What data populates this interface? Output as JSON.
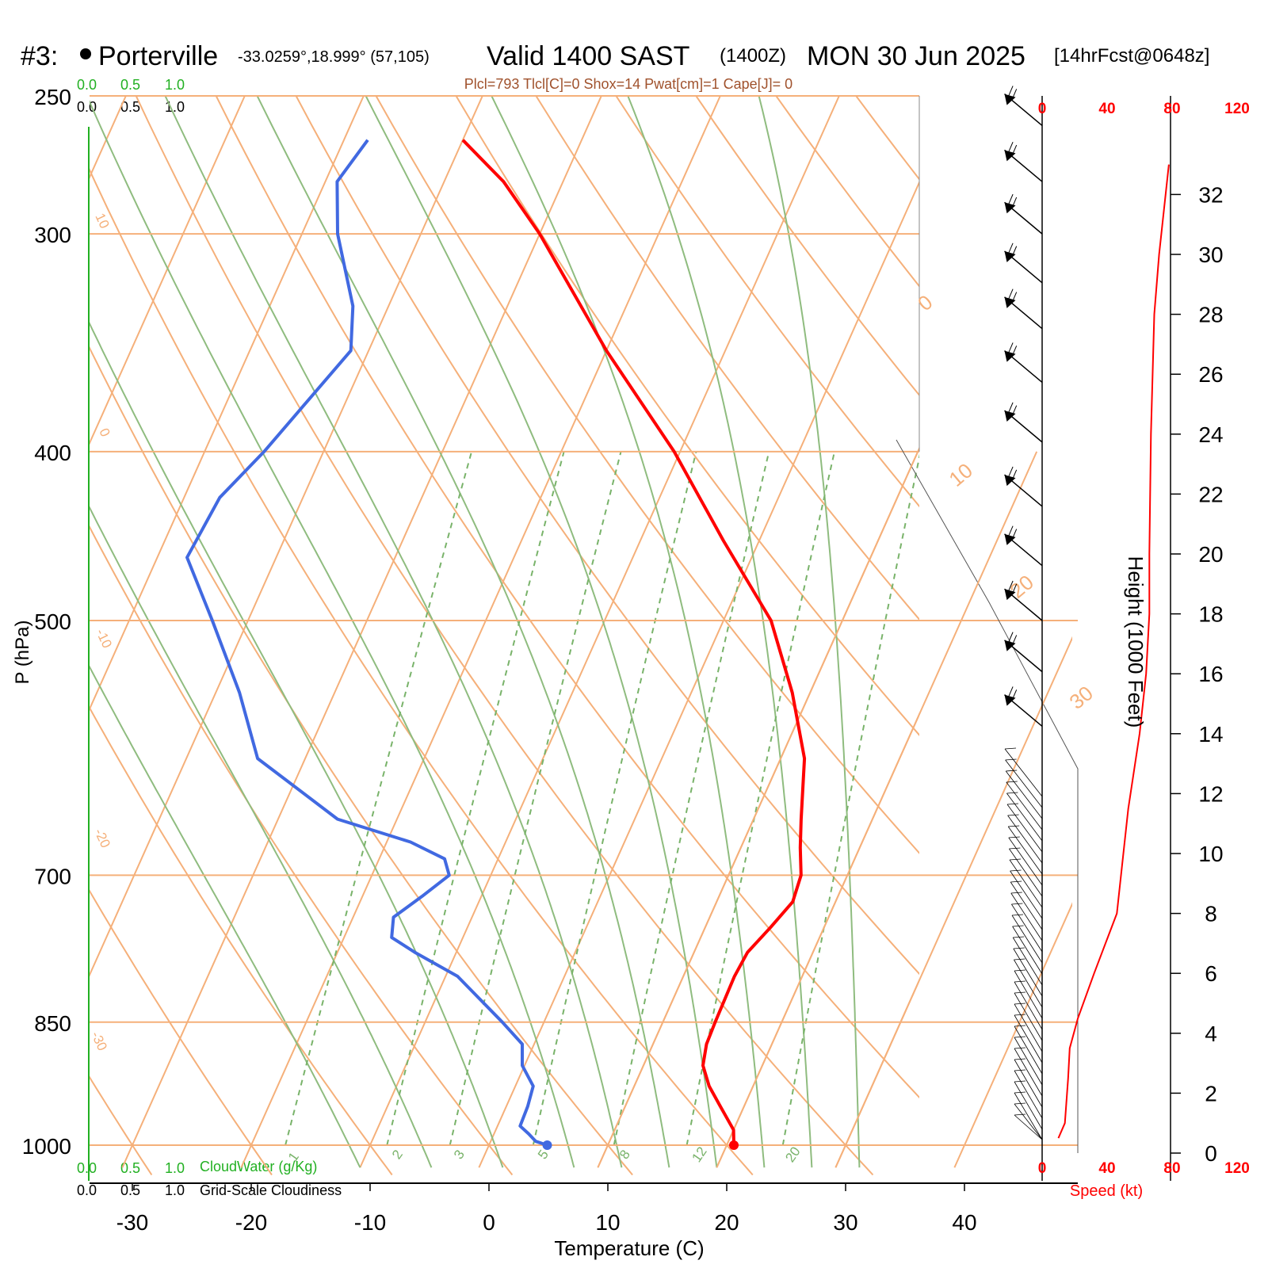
{
  "header": {
    "station_id": "#3:",
    "station_name": "Porterville",
    "coords": "-33.0259°,18.999° (57,105)",
    "valid_main": "Valid 1400 SAST",
    "valid_z": "(1400Z)",
    "date": "MON 30 Jun 2025",
    "forecast": "[14hrFcst@0648z]",
    "indices": "Plcl=793 Tlcl[C]=0 Shox=14 Pwat[cm]=1 Cape[J]= 0"
  },
  "scales": {
    "cloudwater_ticks": [
      "0.0",
      "0.5",
      "1.0"
    ],
    "cloudiness_ticks": [
      "0.0",
      "0.5",
      "1.0"
    ],
    "cloudwater_label": "CloudWater (g/Kg)",
    "cloudiness_label": "Grid-Scale Cloudiness",
    "speed_ticks": [
      "0",
      "40",
      "80",
      "120"
    ],
    "speed_label": "Speed (kt)"
  },
  "colors": {
    "isotherm": "#f5b07a",
    "dry_adiabat": "#f5b07a",
    "moist_adiabat": "#8fbc7f",
    "mixing_ratio": "#79b36a",
    "temperature": "#ff0000",
    "dewpoint": "#4169e1",
    "wind_speed": "#ff0000",
    "green_text": "#22b022",
    "brown_text": "#a0522d"
  },
  "chart_data": {
    "type": "skew-t",
    "xlabel": "Temperature (C)",
    "ylabel": "P (hPa)",
    "y2label": "Height (1000 Feet)",
    "log_pressure": true,
    "xlim": [
      -34,
      36
    ],
    "pressure_range": [
      1030,
      250
    ],
    "pressure_ticks": [
      250,
      300,
      400,
      500,
      700,
      850,
      1000
    ],
    "temperature_ticks": [
      -30,
      -20,
      -10,
      0,
      10,
      20,
      30,
      40
    ],
    "height_ticks_kft": [
      0,
      2,
      4,
      6,
      8,
      10,
      12,
      14,
      16,
      18,
      20,
      22,
      24,
      26,
      28,
      30,
      32
    ],
    "isotherm_labels": [
      "10",
      "0",
      "-10",
      "-20",
      "-30",
      "0",
      "10",
      "20",
      "30"
    ],
    "mixing_ratio_labels": [
      "1",
      "2",
      "3",
      "5",
      "8",
      "12",
      "20"
    ],
    "temperature_profile": [
      {
        "p": 1000,
        "t": 20.6
      },
      {
        "p": 980,
        "t": 20.0
      },
      {
        "p": 950,
        "t": 18.0
      },
      {
        "p": 925,
        "t": 16.3
      },
      {
        "p": 900,
        "t": 15.0
      },
      {
        "p": 875,
        "t": 14.5
      },
      {
        "p": 850,
        "t": 14.4
      },
      {
        "p": 800,
        "t": 14.3
      },
      {
        "p": 775,
        "t": 14.5
      },
      {
        "p": 750,
        "t": 15.5
      },
      {
        "p": 725,
        "t": 16.4
      },
      {
        "p": 700,
        "t": 16.1
      },
      {
        "p": 675,
        "t": 15.0
      },
      {
        "p": 650,
        "t": 14.0
      },
      {
        "p": 600,
        "t": 12.0
      },
      {
        "p": 550,
        "t": 8.5
      },
      {
        "p": 500,
        "t": 4.0
      },
      {
        "p": 450,
        "t": -3.0
      },
      {
        "p": 400,
        "t": -10.5
      },
      {
        "p": 350,
        "t": -20.0
      },
      {
        "p": 300,
        "t": -30.0
      },
      {
        "p": 280,
        "t": -35.0
      },
      {
        "p": 265,
        "t": -40.0
      }
    ],
    "dewpoint_profile": [
      {
        "p": 1000,
        "t": 4.9
      },
      {
        "p": 995,
        "t": 3.8
      },
      {
        "p": 985,
        "t": 2.9
      },
      {
        "p": 975,
        "t": 1.9
      },
      {
        "p": 950,
        "t": 1.8
      },
      {
        "p": 925,
        "t": 1.5
      },
      {
        "p": 900,
        "t": -0.2
      },
      {
        "p": 875,
        "t": -1.0
      },
      {
        "p": 850,
        "t": -3.5
      },
      {
        "p": 800,
        "t": -9.0
      },
      {
        "p": 775,
        "t": -13.5
      },
      {
        "p": 760,
        "t": -16.0
      },
      {
        "p": 740,
        "t": -16.6
      },
      {
        "p": 720,
        "t": -15.0
      },
      {
        "p": 700,
        "t": -13.5
      },
      {
        "p": 685,
        "t": -14.5
      },
      {
        "p": 670,
        "t": -18.0
      },
      {
        "p": 650,
        "t": -25.0
      },
      {
        "p": 600,
        "t": -34.0
      },
      {
        "p": 550,
        "t": -38.0
      },
      {
        "p": 500,
        "t": -43.0
      },
      {
        "p": 460,
        "t": -47.5
      },
      {
        "p": 425,
        "t": -47.0
      },
      {
        "p": 400,
        "t": -45.0
      },
      {
        "p": 350,
        "t": -41.5
      },
      {
        "p": 330,
        "t": -43.0
      },
      {
        "p": 300,
        "t": -47.0
      },
      {
        "p": 280,
        "t": -49.0
      },
      {
        "p": 265,
        "t": -48.0
      }
    ],
    "wind_speed_profile": [
      {
        "h": 0.5,
        "v": 10
      },
      {
        "h": 1.0,
        "v": 14
      },
      {
        "h": 2.5,
        "v": 16
      },
      {
        "h": 3.5,
        "v": 17
      },
      {
        "h": 4.5,
        "v": 22
      },
      {
        "h": 6.0,
        "v": 32
      },
      {
        "h": 8.0,
        "v": 46
      },
      {
        "h": 10.0,
        "v": 50
      },
      {
        "h": 11.5,
        "v": 53
      },
      {
        "h": 14.0,
        "v": 60
      },
      {
        "h": 16.0,
        "v": 64
      },
      {
        "h": 18.0,
        "v": 66
      },
      {
        "h": 20.0,
        "v": 66
      },
      {
        "h": 24.0,
        "v": 67
      },
      {
        "h": 28.0,
        "v": 69
      },
      {
        "h": 30.0,
        "v": 72
      },
      {
        "h": 33.0,
        "v": 78
      }
    ],
    "wind_barbs": [
      {
        "p": 260,
        "dir": 300,
        "spd": 75
      },
      {
        "p": 280,
        "dir": 300,
        "spd": 75
      },
      {
        "p": 300,
        "dir": 300,
        "spd": 75
      },
      {
        "p": 320,
        "dir": 300,
        "spd": 75
      },
      {
        "p": 340,
        "dir": 300,
        "spd": 75
      },
      {
        "p": 365,
        "dir": 300,
        "spd": 70
      },
      {
        "p": 395,
        "dir": 300,
        "spd": 70
      },
      {
        "p": 430,
        "dir": 300,
        "spd": 70
      },
      {
        "p": 465,
        "dir": 300,
        "spd": 65
      },
      {
        "p": 500,
        "dir": 300,
        "spd": 65
      },
      {
        "p": 535,
        "dir": 300,
        "spd": 60
      },
      {
        "p": 575,
        "dir": 300,
        "spd": 55
      }
    ]
  }
}
